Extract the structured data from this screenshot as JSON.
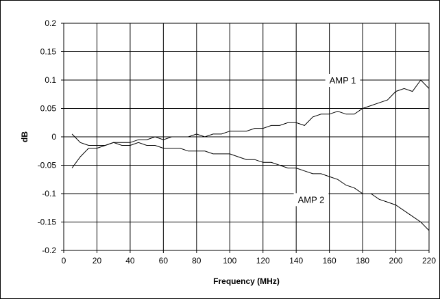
{
  "chart_data": {
    "type": "line",
    "title": "",
    "xlabel": "Frequency (MHz)",
    "ylabel": "dB",
    "xlim": [
      0,
      220
    ],
    "ylim": [
      -0.2,
      0.2
    ],
    "x_ticks": [
      0,
      20,
      40,
      60,
      80,
      100,
      120,
      140,
      160,
      180,
      200,
      220
    ],
    "y_ticks": [
      0.2,
      0.15,
      0.1,
      0.05,
      0,
      -0.05,
      -0.1,
      -0.15,
      -0.2
    ],
    "x_tick_labels": [
      "0",
      "20",
      "40",
      "60",
      "80",
      "100",
      "120",
      "140",
      "160",
      "180",
      "200",
      "220"
    ],
    "y_tick_labels": [
      "0.2",
      "0.15",
      "0.1",
      "0.05",
      "0",
      "-0.05",
      "-0.1",
      "-0.15",
      "-0.2"
    ],
    "grid": true,
    "legend": "none",
    "annotations": [
      {
        "text": "AMP 1",
        "x": 168,
        "y": 0.1
      },
      {
        "text": "AMP 2",
        "x": 149,
        "y": -0.11
      }
    ],
    "series": [
      {
        "name": "AMP 1",
        "color": "#000000",
        "x": [
          5,
          10,
          15,
          20,
          25,
          30,
          35,
          40,
          45,
          50,
          55,
          60,
          65,
          70,
          75,
          80,
          85,
          90,
          95,
          100,
          105,
          110,
          115,
          120,
          125,
          130,
          135,
          140,
          145,
          150,
          155,
          160,
          165,
          170,
          175,
          180,
          185,
          190,
          195,
          200,
          205,
          210,
          215,
          220
        ],
        "y": [
          -0.055,
          -0.035,
          -0.02,
          -0.02,
          -0.015,
          -0.01,
          -0.01,
          -0.01,
          -0.005,
          -0.005,
          0.0,
          -0.005,
          0.0,
          0.0,
          0.0,
          0.005,
          0.0,
          0.005,
          0.005,
          0.01,
          0.01,
          0.01,
          0.015,
          0.015,
          0.02,
          0.02,
          0.025,
          0.025,
          0.02,
          0.035,
          0.04,
          0.04,
          0.045,
          0.04,
          0.04,
          0.05,
          0.055,
          0.06,
          0.065,
          0.08,
          0.085,
          0.08,
          0.1,
          0.085
        ]
      },
      {
        "name": "AMP 2",
        "color": "#000000",
        "x": [
          5,
          10,
          15,
          20,
          25,
          30,
          35,
          40,
          45,
          50,
          55,
          60,
          65,
          70,
          75,
          80,
          85,
          90,
          95,
          100,
          105,
          110,
          115,
          120,
          125,
          130,
          135,
          140,
          145,
          150,
          155,
          160,
          165,
          170,
          175,
          180,
          185,
          190,
          195,
          200,
          205,
          210,
          215,
          220
        ],
        "y": [
          0.005,
          -0.01,
          -0.015,
          -0.015,
          -0.015,
          -0.01,
          -0.015,
          -0.015,
          -0.01,
          -0.015,
          -0.015,
          -0.02,
          -0.02,
          -0.02,
          -0.025,
          -0.025,
          -0.025,
          -0.03,
          -0.03,
          -0.03,
          -0.035,
          -0.04,
          -0.04,
          -0.045,
          -0.045,
          -0.05,
          -0.055,
          -0.055,
          -0.06,
          -0.065,
          -0.065,
          -0.07,
          -0.075,
          -0.085,
          -0.09,
          -0.1,
          -0.1,
          -0.11,
          -0.115,
          -0.12,
          -0.13,
          -0.14,
          -0.15,
          -0.165
        ]
      }
    ]
  }
}
